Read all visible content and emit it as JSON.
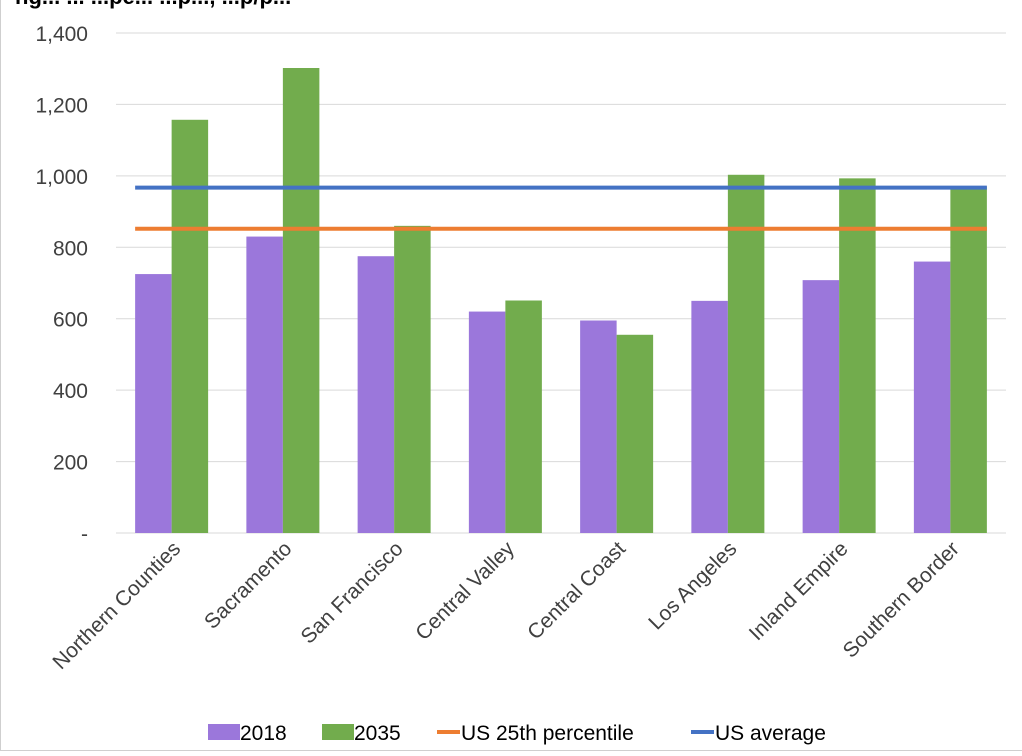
{
  "chart_data": {
    "type": "bar",
    "title": "ng... ... ...pe... ...p..., ...p/p...",
    "categories": [
      "Northern Counties",
      "Sacramento",
      "San Francisco",
      "Central Valley",
      "Central Coast",
      "Los Angeles",
      "Inland Empire",
      "Southern Border"
    ],
    "series": [
      {
        "name": "2018",
        "type": "bar",
        "color": "#9b77db",
        "values": [
          725,
          830,
          775,
          620,
          595,
          650,
          708,
          760
        ]
      },
      {
        "name": "2035",
        "type": "bar",
        "color": "#72ac4d",
        "values": [
          1157,
          1302,
          860,
          651,
          555,
          1003,
          993,
          970
        ]
      },
      {
        "name": "US 25th percentile",
        "type": "line",
        "color": "#ed7d31",
        "values": [
          852,
          852,
          852,
          852,
          852,
          852,
          852,
          852
        ]
      },
      {
        "name": "US average",
        "type": "line",
        "color": "#4472c4",
        "values": [
          967,
          967,
          967,
          967,
          967,
          967,
          967,
          967
        ]
      }
    ],
    "ylim": [
      0,
      1400
    ],
    "yticks": [
      0,
      200,
      400,
      600,
      800,
      1000,
      1200,
      1400
    ],
    "ytick_labels": [
      "-",
      "200",
      "400",
      "600",
      "800",
      "1,000",
      "1,200",
      "1,400"
    ],
    "xlabel": "",
    "ylabel": "",
    "grid": true,
    "legend_position": "bottom"
  }
}
